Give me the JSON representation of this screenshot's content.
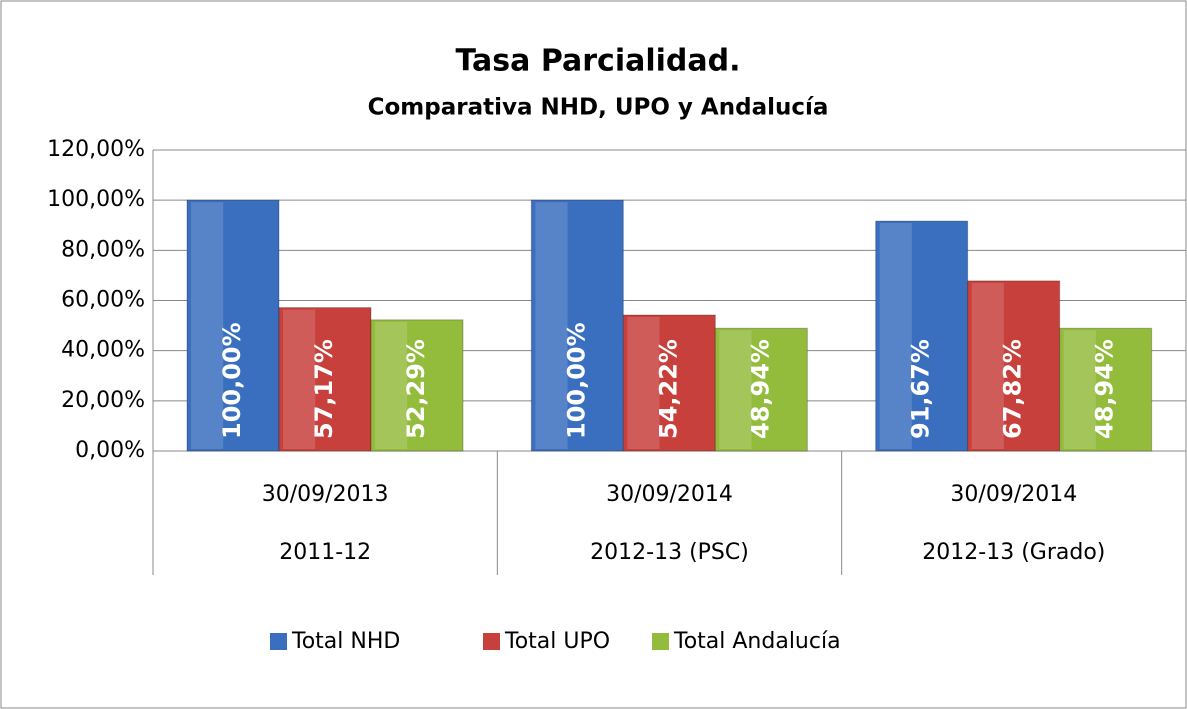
{
  "chart_data": {
    "type": "bar",
    "title": "Tasa Parcialidad.",
    "subtitle": "Comparativa NHD, UPO y Andalucía",
    "categories": [
      "30/09/2013",
      "30/09/2014",
      "30/09/2014"
    ],
    "category_groups": [
      "2011-12",
      "2012-13 (PSC)",
      "2012-13 (Grado)"
    ],
    "series": [
      {
        "name": "Total NHD",
        "color": "#3a6fbf",
        "values": [
          100,
          100,
          91.67
        ],
        "value_labels": [
          "100,00%",
          "100,00%",
          "91,67%"
        ]
      },
      {
        "name": "Total UPO",
        "color": "#c8403c",
        "values": [
          57.17,
          54.22,
          67.82
        ],
        "value_labels": [
          "57,17%",
          "54,22%",
          "67,82%"
        ]
      },
      {
        "name": "Total Andalucía",
        "color": "#93bb3c",
        "values": [
          52.29,
          48.94,
          48.94
        ],
        "value_labels": [
          "52,29%",
          "48,94%",
          "48,94%"
        ]
      }
    ],
    "ylim": [
      0,
      120
    ],
    "yticks": [
      {
        "value": 0,
        "label": "0,00%"
      },
      {
        "value": 20,
        "label": "20,00%"
      },
      {
        "value": 40,
        "label": "40,00%"
      },
      {
        "value": 60,
        "label": "60,00%"
      },
      {
        "value": 80,
        "label": "80,00%"
      },
      {
        "value": 100,
        "label": "100,00%"
      },
      {
        "value": 120,
        "label": "120,00%"
      }
    ],
    "grid": true,
    "legend": "bottom"
  }
}
